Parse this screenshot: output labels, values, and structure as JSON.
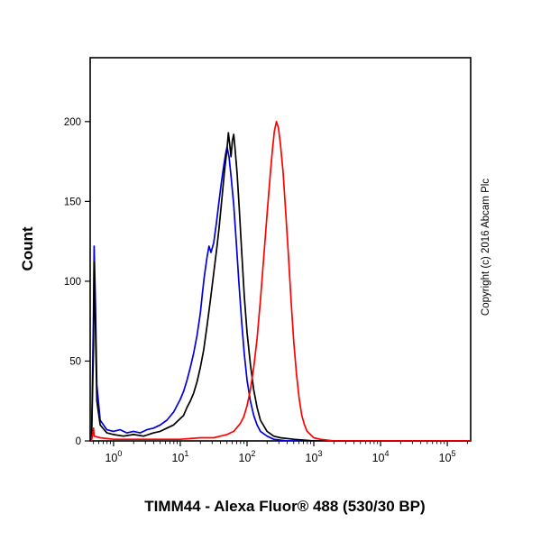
{
  "title": "TIMM44 - Alexa Fluor® 488 (530/30 BP)",
  "copyright": "Copyright (c) 2016 Abcam Plc",
  "chart_data": {
    "type": "line",
    "subtype": "flow-cytometry-histogram",
    "title": "TIMM44 - Alexa Fluor® 488 (530/30 BP)",
    "xlabel": "",
    "ylabel": "Count",
    "xscale": "log",
    "xlog_range": [
      -0.35,
      5.35
    ],
    "x_tick_base": "10",
    "x_tick_exponents": [
      0,
      1,
      2,
      3,
      4,
      5
    ],
    "ylim": [
      0,
      240
    ],
    "y_ticks": [
      0,
      50,
      100,
      150,
      200
    ],
    "grid": false,
    "legend": "none",
    "background": "#ffffff",
    "series": [
      {
        "name": "blue",
        "color": "#0000dd",
        "peak": {
          "x_log10": 1.7,
          "count": 184
        },
        "points": [
          [
            -0.33,
            0
          ],
          [
            -0.3,
            80
          ],
          [
            -0.29,
            122
          ],
          [
            -0.27,
            85
          ],
          [
            -0.25,
            35
          ],
          [
            -0.2,
            13
          ],
          [
            -0.1,
            7
          ],
          [
            0.0,
            6
          ],
          [
            0.1,
            7
          ],
          [
            0.2,
            5
          ],
          [
            0.3,
            6
          ],
          [
            0.4,
            5
          ],
          [
            0.5,
            7
          ],
          [
            0.6,
            8
          ],
          [
            0.7,
            10
          ],
          [
            0.8,
            13
          ],
          [
            0.9,
            18
          ],
          [
            1.0,
            26
          ],
          [
            1.05,
            31
          ],
          [
            1.1,
            38
          ],
          [
            1.15,
            46
          ],
          [
            1.2,
            55
          ],
          [
            1.25,
            66
          ],
          [
            1.3,
            80
          ],
          [
            1.33,
            92
          ],
          [
            1.36,
            103
          ],
          [
            1.4,
            115
          ],
          [
            1.43,
            122
          ],
          [
            1.46,
            118
          ],
          [
            1.5,
            124
          ],
          [
            1.54,
            136
          ],
          [
            1.58,
            150
          ],
          [
            1.62,
            163
          ],
          [
            1.65,
            172
          ],
          [
            1.68,
            180
          ],
          [
            1.7,
            184
          ],
          [
            1.73,
            178
          ],
          [
            1.76,
            166
          ],
          [
            1.8,
            148
          ],
          [
            1.84,
            124
          ],
          [
            1.88,
            98
          ],
          [
            1.92,
            74
          ],
          [
            1.96,
            54
          ],
          [
            2.0,
            38
          ],
          [
            2.05,
            25
          ],
          [
            2.1,
            16
          ],
          [
            2.15,
            10
          ],
          [
            2.2,
            6
          ],
          [
            2.3,
            3
          ],
          [
            2.4,
            1
          ],
          [
            2.6,
            0
          ],
          [
            5.35,
            0
          ]
        ]
      },
      {
        "name": "black",
        "color": "#000000",
        "peak": {
          "x_log10": 1.72,
          "count": 193
        },
        "points": [
          [
            -0.33,
            0
          ],
          [
            -0.3,
            60
          ],
          [
            -0.29,
            112
          ],
          [
            -0.27,
            70
          ],
          [
            -0.25,
            25
          ],
          [
            -0.2,
            10
          ],
          [
            -0.1,
            5
          ],
          [
            0.0,
            4
          ],
          [
            0.15,
            3
          ],
          [
            0.3,
            4
          ],
          [
            0.45,
            3
          ],
          [
            0.6,
            5
          ],
          [
            0.7,
            6
          ],
          [
            0.8,
            8
          ],
          [
            0.9,
            10
          ],
          [
            1.0,
            14
          ],
          [
            1.05,
            16
          ],
          [
            1.1,
            21
          ],
          [
            1.15,
            25
          ],
          [
            1.2,
            30
          ],
          [
            1.25,
            37
          ],
          [
            1.3,
            46
          ],
          [
            1.35,
            57
          ],
          [
            1.4,
            72
          ],
          [
            1.45,
            88
          ],
          [
            1.5,
            105
          ],
          [
            1.55,
            122
          ],
          [
            1.58,
            133
          ],
          [
            1.62,
            150
          ],
          [
            1.66,
            168
          ],
          [
            1.7,
            183
          ],
          [
            1.72,
            193
          ],
          [
            1.74,
            186
          ],
          [
            1.76,
            178
          ],
          [
            1.78,
            188
          ],
          [
            1.8,
            192
          ],
          [
            1.82,
            183
          ],
          [
            1.85,
            168
          ],
          [
            1.88,
            148
          ],
          [
            1.92,
            118
          ],
          [
            1.96,
            90
          ],
          [
            2.0,
            68
          ],
          [
            2.05,
            48
          ],
          [
            2.1,
            32
          ],
          [
            2.15,
            21
          ],
          [
            2.2,
            13
          ],
          [
            2.3,
            6
          ],
          [
            2.4,
            3
          ],
          [
            2.5,
            2
          ],
          [
            2.7,
            1
          ],
          [
            3.0,
            0
          ],
          [
            5.35,
            0
          ]
        ]
      },
      {
        "name": "red",
        "color": "#ff0000",
        "peak": {
          "x_log10": 2.44,
          "count": 200
        },
        "points": [
          [
            -0.33,
            0
          ],
          [
            -0.3,
            8
          ],
          [
            -0.29,
            3
          ],
          [
            -0.2,
            2
          ],
          [
            0.0,
            1
          ],
          [
            0.5,
            1
          ],
          [
            1.0,
            1
          ],
          [
            1.3,
            2
          ],
          [
            1.5,
            2
          ],
          [
            1.6,
            3
          ],
          [
            1.7,
            4
          ],
          [
            1.8,
            6
          ],
          [
            1.9,
            11
          ],
          [
            1.95,
            15
          ],
          [
            2.0,
            22
          ],
          [
            2.05,
            32
          ],
          [
            2.1,
            46
          ],
          [
            2.15,
            64
          ],
          [
            2.2,
            88
          ],
          [
            2.25,
            115
          ],
          [
            2.3,
            142
          ],
          [
            2.35,
            168
          ],
          [
            2.38,
            182
          ],
          [
            2.41,
            194
          ],
          [
            2.44,
            200
          ],
          [
            2.47,
            196
          ],
          [
            2.5,
            186
          ],
          [
            2.54,
            168
          ],
          [
            2.58,
            143
          ],
          [
            2.62,
            116
          ],
          [
            2.66,
            88
          ],
          [
            2.7,
            62
          ],
          [
            2.74,
            42
          ],
          [
            2.78,
            27
          ],
          [
            2.82,
            16
          ],
          [
            2.86,
            10
          ],
          [
            2.9,
            6
          ],
          [
            3.0,
            2
          ],
          [
            3.1,
            1
          ],
          [
            3.3,
            0
          ],
          [
            5.35,
            0
          ]
        ]
      }
    ]
  }
}
